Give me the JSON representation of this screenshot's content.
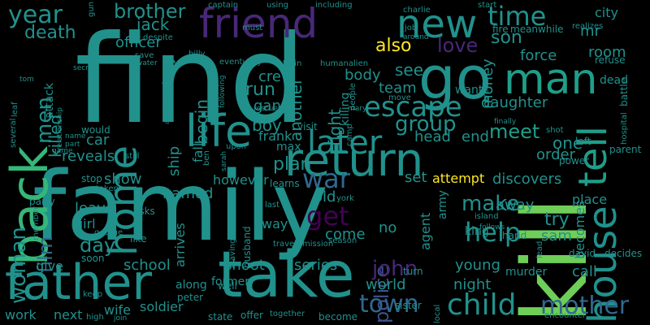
{
  "palette": {
    "background": "#000000",
    "purple": "#440154",
    "indigo": "#3b528b",
    "blue": "#31688e",
    "teal": "#21918c",
    "sea": "#1f9e89",
    "green": "#35b779",
    "lime": "#6ece58",
    "yellow": "#fde725",
    "violet": "#482878"
  },
  "words": [
    {
      "text": "find",
      "color": "teal"
    },
    {
      "text": "family",
      "color": "teal"
    },
    {
      "text": "kill",
      "color": "lime"
    },
    {
      "text": "take",
      "color": "teal"
    },
    {
      "text": "father",
      "color": "teal"
    },
    {
      "text": "back",
      "color": "green"
    },
    {
      "text": "go",
      "color": "teal"
    },
    {
      "text": "return",
      "color": "teal"
    },
    {
      "text": "life",
      "color": "teal"
    },
    {
      "text": "home",
      "color": "teal"
    },
    {
      "text": "friend",
      "color": "violet"
    },
    {
      "text": "new",
      "color": "teal"
    },
    {
      "text": "house",
      "color": "teal"
    },
    {
      "text": "tell",
      "color": "sea"
    },
    {
      "text": "man",
      "color": "sea"
    },
    {
      "text": "later",
      "color": "teal"
    },
    {
      "text": "war",
      "color": "blue"
    },
    {
      "text": "child",
      "color": "teal"
    },
    {
      "text": "mother",
      "color": "blue"
    },
    {
      "text": "town",
      "color": "blue"
    },
    {
      "text": "escape",
      "color": "teal"
    },
    {
      "text": "time",
      "color": "teal"
    },
    {
      "text": "woman",
      "color": "teal"
    },
    {
      "text": "year",
      "color": "teal"
    },
    {
      "text": "death",
      "color": "teal"
    },
    {
      "text": "get",
      "color": "purple"
    },
    {
      "text": "help",
      "color": "teal"
    },
    {
      "text": "love",
      "color": "violet"
    },
    {
      "text": "police",
      "color": "indigo"
    },
    {
      "text": "group",
      "color": "teal"
    },
    {
      "text": "make",
      "color": "teal"
    },
    {
      "text": "meet",
      "color": "sea"
    },
    {
      "text": "john",
      "color": "violet"
    },
    {
      "text": "film",
      "color": "blue"
    },
    {
      "text": "day",
      "color": "teal"
    },
    {
      "text": "brother",
      "color": "teal"
    },
    {
      "text": "also",
      "color": "yellow"
    },
    {
      "text": "son",
      "color": "teal"
    },
    {
      "text": "see",
      "color": "teal"
    },
    {
      "text": "men",
      "color": "teal"
    },
    {
      "text": "killed",
      "color": "teal"
    },
    {
      "text": "jack",
      "color": "teal"
    },
    {
      "text": "officer",
      "color": "teal"
    },
    {
      "text": "story",
      "color": "teal"
    },
    {
      "text": "begin",
      "color": "teal"
    },
    {
      "text": "fall",
      "color": "teal"
    },
    {
      "text": "run",
      "color": "teal"
    },
    {
      "text": "gang",
      "color": "teal"
    },
    {
      "text": "boy",
      "color": "teal"
    },
    {
      "text": "plan",
      "color": "teal"
    },
    {
      "text": "another",
      "color": "teal"
    },
    {
      "text": "fight",
      "color": "teal"
    },
    {
      "text": "crew",
      "color": "teal"
    },
    {
      "text": "body",
      "color": "teal"
    },
    {
      "text": "team",
      "color": "teal"
    },
    {
      "text": "end",
      "color": "teal"
    },
    {
      "text": "head",
      "color": "teal"
    },
    {
      "text": "money",
      "color": "teal"
    },
    {
      "text": "daughter",
      "color": "teal"
    },
    {
      "text": "force",
      "color": "teal"
    },
    {
      "text": "room",
      "color": "teal"
    },
    {
      "text": "one",
      "color": "teal"
    },
    {
      "text": "order",
      "color": "teal"
    },
    {
      "text": "try",
      "color": "teal"
    },
    {
      "text": "becomes",
      "color": "teal"
    },
    {
      "text": "sam",
      "color": "teal"
    },
    {
      "text": "away",
      "color": "teal"
    },
    {
      "text": "attempt",
      "color": "yellow"
    },
    {
      "text": "discovers",
      "color": "teal"
    },
    {
      "text": "set",
      "color": "teal"
    },
    {
      "text": "car",
      "color": "teal"
    },
    {
      "text": "reveals",
      "color": "teal"
    },
    {
      "text": "show",
      "color": "teal"
    },
    {
      "text": "named",
      "color": "teal"
    },
    {
      "text": "however",
      "color": "teal"
    },
    {
      "text": "ship",
      "color": "teal"
    },
    {
      "text": "leave",
      "color": "teal"
    },
    {
      "text": "girl",
      "color": "teal"
    },
    {
      "text": "arrives",
      "color": "teal"
    },
    {
      "text": "give",
      "color": "teal"
    },
    {
      "text": "school",
      "color": "teal"
    },
    {
      "text": "shoot",
      "color": "teal"
    },
    {
      "text": "series",
      "color": "teal"
    },
    {
      "text": "young",
      "color": "teal"
    },
    {
      "text": "night",
      "color": "teal"
    },
    {
      "text": "world",
      "color": "teal"
    },
    {
      "text": "work",
      "color": "teal"
    },
    {
      "text": "next",
      "color": "teal"
    },
    {
      "text": "wife",
      "color": "teal"
    },
    {
      "text": "soldier",
      "color": "teal"
    },
    {
      "text": "call",
      "color": "teal"
    },
    {
      "text": "agent",
      "color": "teal"
    },
    {
      "text": "army",
      "color": "teal"
    },
    {
      "text": "come",
      "color": "teal"
    },
    {
      "text": "old",
      "color": "teal"
    },
    {
      "text": "way",
      "color": "teal"
    },
    {
      "text": "no",
      "color": "teal"
    },
    {
      "text": "city",
      "color": "teal"
    },
    {
      "text": "mr",
      "color": "teal"
    },
    {
      "text": "killing",
      "color": "teal"
    },
    {
      "text": "want",
      "color": "teal"
    },
    {
      "text": "visit",
      "color": "teal"
    },
    {
      "text": "frank",
      "color": "teal"
    },
    {
      "text": "max",
      "color": "teal"
    },
    {
      "text": "learns",
      "color": "teal"
    },
    {
      "text": "king",
      "color": "teal"
    },
    {
      "text": "murder",
      "color": "teal"
    },
    {
      "text": "hand",
      "color": "teal"
    },
    {
      "text": "place",
      "color": "teal"
    },
    {
      "text": "left",
      "color": "teal"
    },
    {
      "text": "shot",
      "color": "teal"
    },
    {
      "text": "power",
      "color": "teal"
    },
    {
      "text": "parent",
      "color": "teal"
    },
    {
      "text": "dead",
      "color": "teal"
    },
    {
      "text": "refuse",
      "color": "teal"
    },
    {
      "text": "battle",
      "color": "teal"
    },
    {
      "text": "fire",
      "color": "teal"
    },
    {
      "text": "meanwhile",
      "color": "teal"
    },
    {
      "text": "realizes",
      "color": "teal"
    },
    {
      "text": "start",
      "color": "teal"
    },
    {
      "text": "job",
      "color": "teal"
    },
    {
      "text": "charlie",
      "color": "teal"
    },
    {
      "text": "including",
      "color": "teal"
    },
    {
      "text": "using",
      "color": "teal"
    },
    {
      "text": "captain",
      "color": "teal"
    },
    {
      "text": "must",
      "color": "teal"
    },
    {
      "text": "despite",
      "color": "teal"
    },
    {
      "text": "billy",
      "color": "teal"
    },
    {
      "text": "eventually",
      "color": "teal"
    },
    {
      "text": "train",
      "color": "teal"
    },
    {
      "text": "humanalien",
      "color": "teal"
    },
    {
      "text": "save",
      "color": "teal"
    },
    {
      "text": "water",
      "color": "teal"
    },
    {
      "text": "following",
      "color": "teal"
    },
    {
      "text": "secret",
      "color": "teal"
    },
    {
      "text": "leaf",
      "color": "teal"
    },
    {
      "text": "tom",
      "color": "teal"
    },
    {
      "text": "relationship",
      "color": "teal"
    },
    {
      "text": "attack",
      "color": "teal"
    },
    {
      "text": "several",
      "color": "teal"
    },
    {
      "text": "would",
      "color": "teal"
    },
    {
      "text": "name",
      "color": "teal"
    },
    {
      "text": "part",
      "color": "teal"
    },
    {
      "text": "game",
      "color": "teal"
    },
    {
      "text": "still",
      "color": "teal"
    },
    {
      "text": "ben",
      "color": "teal"
    },
    {
      "text": "sarah",
      "color": "teal"
    },
    {
      "text": "upon",
      "color": "teal"
    },
    {
      "text": "rescue",
      "color": "teal"
    },
    {
      "text": "apartment",
      "color": "teal"
    },
    {
      "text": "party",
      "color": "teal"
    },
    {
      "text": "stop",
      "color": "teal"
    },
    {
      "text": "taken",
      "color": "teal"
    },
    {
      "text": "member",
      "color": "teal"
    },
    {
      "text": "asks",
      "color": "teal"
    },
    {
      "text": "like",
      "color": "teal"
    },
    {
      "text": "george",
      "color": "teal"
    },
    {
      "text": "soon",
      "color": "teal"
    },
    {
      "text": "along",
      "color": "teal"
    },
    {
      "text": "former",
      "color": "teal"
    },
    {
      "text": "husband",
      "color": "teal"
    },
    {
      "text": "leaving",
      "color": "teal"
    },
    {
      "text": "last",
      "color": "teal"
    },
    {
      "text": "travel",
      "color": "teal"
    },
    {
      "text": "mission",
      "color": "teal"
    },
    {
      "text": "york",
      "color": "teal"
    },
    {
      "text": "season",
      "color": "teal"
    },
    {
      "text": "local",
      "color": "teal"
    },
    {
      "text": "turn",
      "color": "teal"
    },
    {
      "text": "sister",
      "color": "teal"
    },
    {
      "text": "island",
      "color": "teal"
    },
    {
      "text": "follows",
      "color": "teal"
    },
    {
      "text": "lead",
      "color": "teal"
    },
    {
      "text": "decides",
      "color": "teal"
    },
    {
      "text": "david",
      "color": "teal"
    },
    {
      "text": "encounter",
      "color": "teal"
    },
    {
      "text": "peter",
      "color": "teal"
    },
    {
      "text": "well",
      "color": "teal"
    },
    {
      "text": "state",
      "color": "teal"
    },
    {
      "text": "offer",
      "color": "teal"
    },
    {
      "text": "together",
      "color": "teal"
    },
    {
      "text": "become",
      "color": "teal"
    },
    {
      "text": "keep",
      "color": "teal"
    },
    {
      "text": "high",
      "color": "teal"
    },
    {
      "text": "join",
      "color": "teal"
    },
    {
      "text": "mary",
      "color": "teal"
    },
    {
      "text": "people",
      "color": "teal"
    },
    {
      "text": "move",
      "color": "teal"
    },
    {
      "text": "camp",
      "color": "teal"
    },
    {
      "text": "around",
      "color": "teal"
    },
    {
      "text": "break",
      "color": "teal"
    },
    {
      "text": "finally",
      "color": "teal"
    },
    {
      "text": "hospital",
      "color": "teal"
    },
    {
      "text": "gun",
      "color": "teal"
    }
  ]
}
